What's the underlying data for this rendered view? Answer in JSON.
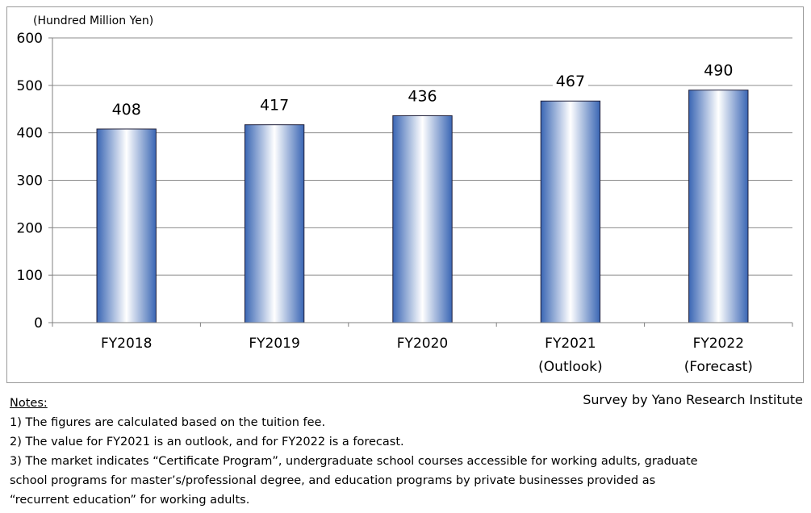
{
  "chart_data": {
    "type": "bar",
    "unit_label": "(Hundred Million Yen)",
    "categories": [
      [
        "FY2018"
      ],
      [
        "FY2019"
      ],
      [
        "FY2020"
      ],
      [
        "FY2021",
        "(Outlook)"
      ],
      [
        "FY2022",
        "(Forecast)"
      ]
    ],
    "values": [
      408,
      417,
      436,
      467,
      490
    ],
    "data_labels": [
      "408",
      "417",
      "436",
      "467",
      "490"
    ],
    "ylim": [
      0,
      600
    ],
    "yticks": [
      0,
      100,
      200,
      300,
      400,
      500,
      600
    ],
    "grid": true,
    "colors": {
      "bar_edge": "#3a66b4",
      "bar_center": "#ffffff",
      "bar_outline": "#1f1f3a",
      "grid": "#8c8c8c"
    }
  },
  "source": "Survey by Yano Research Institute",
  "notes": {
    "title": "Notes:",
    "lines": [
      "1) The figures are calculated based on the tuition fee.",
      "2) The value for FY2021 is an outlook, and for FY2022 is a forecast.",
      "3) The market indicates “Certificate Program”, undergraduate school courses accessible for working adults, graduate",
      "school programs for master’s/professional degree, and education programs by private businesses provided as",
      " “recurrent education” for working adults."
    ]
  }
}
